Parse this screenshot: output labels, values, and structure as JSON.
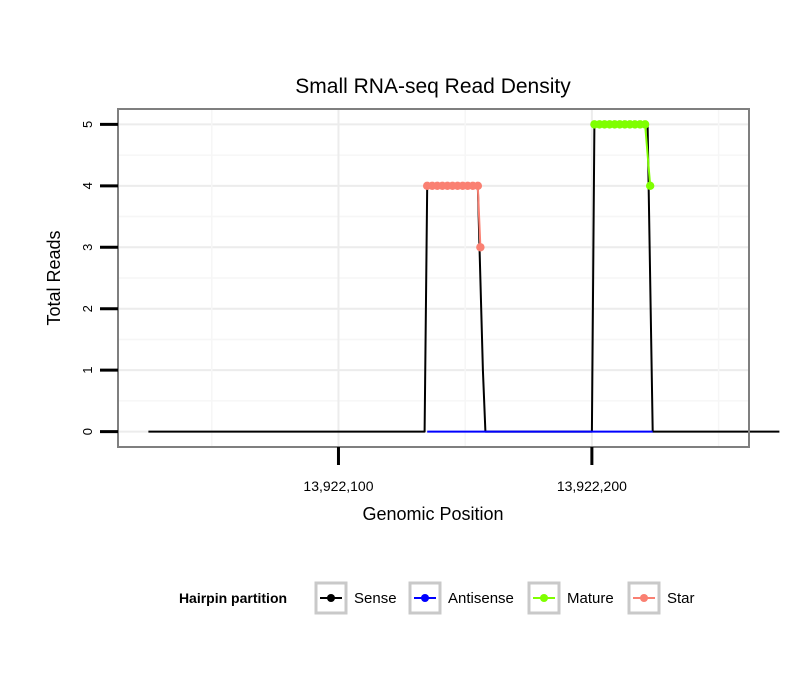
{
  "chart_data": {
    "type": "line",
    "title": "Small RNA-seq Read Density",
    "xlabel": "Genomic Position",
    "ylabel": "Total Reads",
    "xlim": [
      13922013,
      13922262
    ],
    "ylim": [
      -0.25,
      5.25
    ],
    "x_ticks": [
      13922100,
      13922200
    ],
    "x_tick_labels": [
      "13,922,100",
      "13,922,200"
    ],
    "y_ticks": [
      0,
      1,
      2,
      3,
      4,
      5
    ],
    "y_tick_labels": [
      "0",
      "1",
      "2",
      "3",
      "4",
      "5"
    ],
    "grid": true,
    "legend": {
      "title": "Hairpin partition",
      "position": "bottom",
      "items": [
        {
          "name": "Sense",
          "color": "#000000"
        },
        {
          "name": "Antisense",
          "color": "#0000FF"
        },
        {
          "name": "Mature",
          "color": "#7FFF00"
        },
        {
          "name": "Star",
          "color": "#FA8072"
        }
      ]
    },
    "series": [
      {
        "name": "Sense",
        "color": "#000000",
        "points": [
          [
            13922025,
            0
          ],
          [
            13922134,
            0
          ],
          [
            13922135,
            4
          ],
          [
            13922155,
            4
          ],
          [
            13922157,
            1
          ],
          [
            13922158,
            0
          ],
          [
            13922200,
            0
          ],
          [
            13922201,
            5
          ],
          [
            13922222,
            5
          ],
          [
            13922224,
            0
          ],
          [
            13922274,
            0
          ]
        ]
      },
      {
        "name": "Antisense",
        "color": "#0000FF",
        "points": [
          [
            13922135,
            0
          ],
          [
            13922158,
            0
          ],
          [
            13922201,
            0
          ],
          [
            13922224,
            0
          ]
        ]
      },
      {
        "name": "Mature",
        "color": "#7FFF00",
        "points": [
          [
            13922201,
            5
          ],
          [
            13922203,
            5
          ],
          [
            13922205,
            5
          ],
          [
            13922207,
            5
          ],
          [
            13922209,
            5
          ],
          [
            13922211,
            5
          ],
          [
            13922213,
            5
          ],
          [
            13922215,
            5
          ],
          [
            13922217,
            5
          ],
          [
            13922219,
            5
          ],
          [
            13922221,
            5
          ],
          [
            13922223,
            4
          ]
        ]
      },
      {
        "name": "Star",
        "color": "#FA8072",
        "points": [
          [
            13922135,
            4
          ],
          [
            13922137,
            4
          ],
          [
            13922139,
            4
          ],
          [
            13922141,
            4
          ],
          [
            13922143,
            4
          ],
          [
            13922145,
            4
          ],
          [
            13922147,
            4
          ],
          [
            13922149,
            4
          ],
          [
            13922151,
            4
          ],
          [
            13922153,
            4
          ],
          [
            13922155,
            4
          ],
          [
            13922156,
            3
          ]
        ]
      }
    ]
  }
}
